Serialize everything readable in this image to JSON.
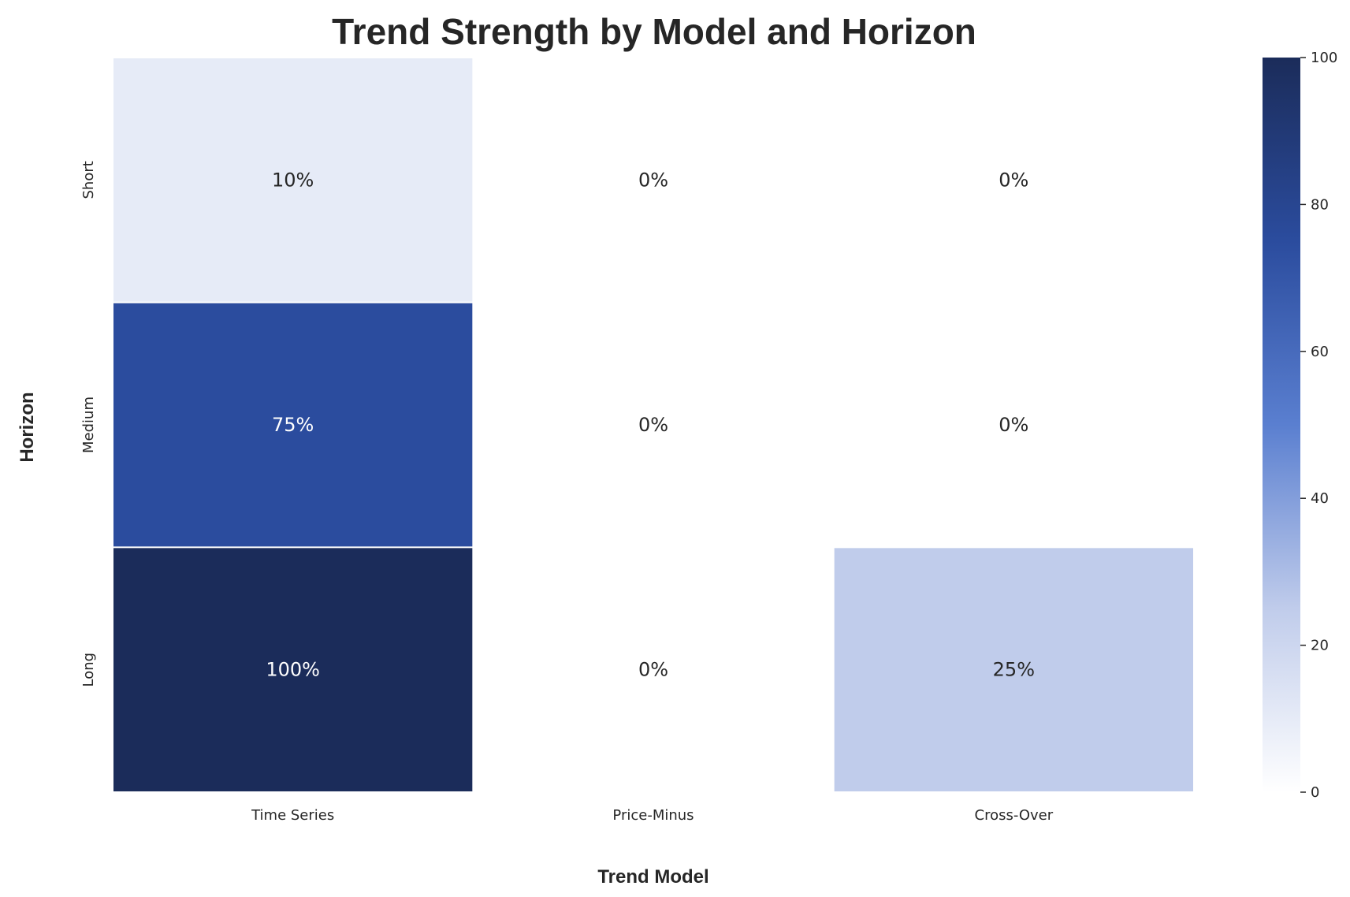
{
  "chart_data": {
    "type": "heatmap",
    "title": "Trend Strength by Model and Horizon",
    "xlabel": "Trend Model",
    "ylabel": "Horizon",
    "x_categories": [
      "Time Series",
      "Price-Minus",
      "Cross-Over"
    ],
    "y_categories": [
      "Short",
      "Medium",
      "Long"
    ],
    "values": [
      [
        10,
        0,
        0
      ],
      [
        75,
        0,
        0
      ],
      [
        100,
        0,
        25
      ]
    ],
    "cell_labels": [
      [
        "10%",
        "0%",
        "0%"
      ],
      [
        "75%",
        "0%",
        "0%"
      ],
      [
        "100%",
        "0%",
        "25%"
      ]
    ],
    "colorbar": {
      "range": [
        0,
        100
      ],
      "ticks": [
        "0",
        "20",
        "40",
        "60",
        "80",
        "100"
      ],
      "colors": [
        "#ffffff",
        "#c0cceb",
        "#5a7fd0",
        "#2b4c9e",
        "#1b2c5a"
      ]
    },
    "grid": false
  }
}
